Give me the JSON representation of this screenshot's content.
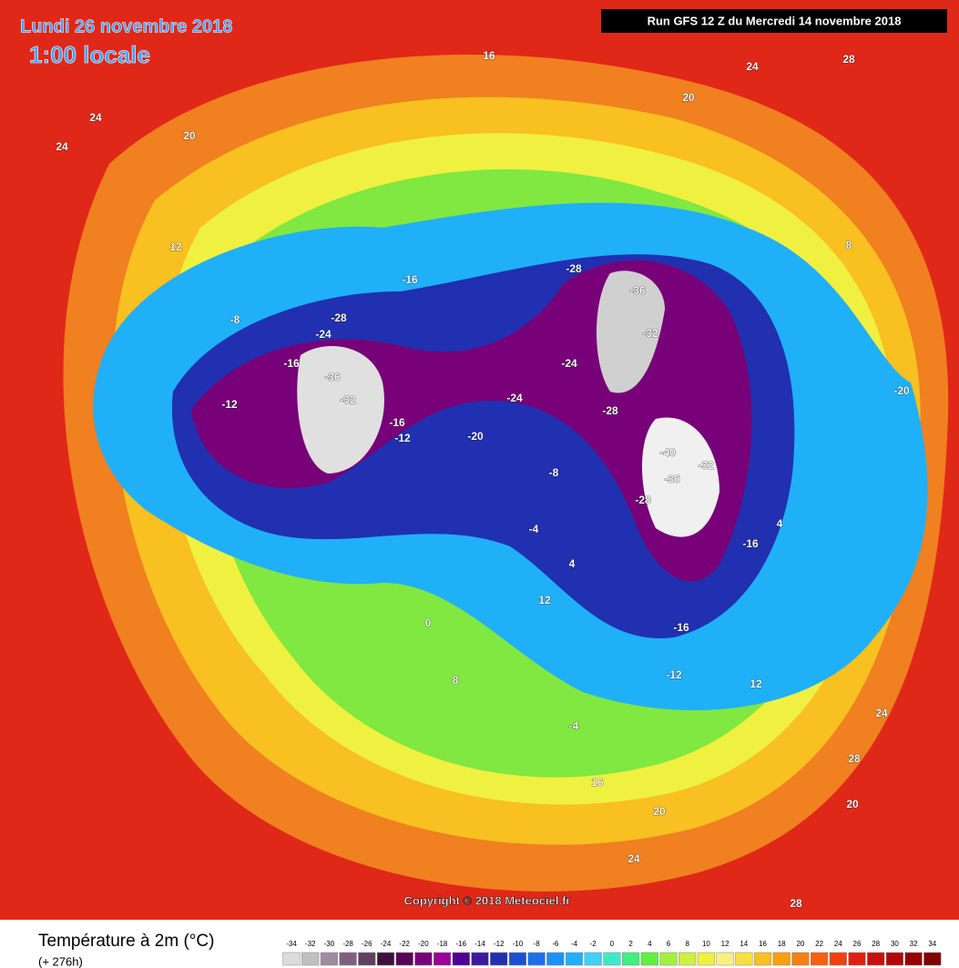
{
  "header": {
    "date": "Lundi 26 novembre 2018",
    "time": "1:00 locale",
    "run": "Run GFS 12 Z du Mercredi 14 novembre 2018"
  },
  "copyright": "Copyright © 2018 Meteociel.fr",
  "legend": {
    "title": "Température à 2m (°C)",
    "subtitle": "(+ 276h)",
    "scale": [
      -34,
      -32,
      -30,
      -28,
      -26,
      -24,
      -22,
      -20,
      -18,
      -16,
      -14,
      -12,
      -10,
      -8,
      -6,
      -4,
      -2,
      0,
      2,
      4,
      6,
      8,
      10,
      12,
      14,
      16,
      18,
      20,
      22,
      24,
      26,
      28,
      30,
      32,
      34
    ],
    "colors": [
      "#dcdcdc",
      "#c0c0c0",
      "#a08ca0",
      "#806080",
      "#604060",
      "#40103c",
      "#580058",
      "#780078",
      "#9a009a",
      "#500090",
      "#3c1c9c",
      "#2030b0",
      "#1c50d0",
      "#1c70e8",
      "#1c90f4",
      "#20b0f8",
      "#40d0f8",
      "#40e8c8",
      "#40f080",
      "#60f040",
      "#a0f040",
      "#d0f040",
      "#f0f040",
      "#f8f080",
      "#f8e040",
      "#f8c020",
      "#f8a010",
      "#f88010",
      "#f86010",
      "#f04010",
      "#e02010",
      "#c81010",
      "#b00808",
      "#980000",
      "#800000"
    ]
  },
  "map_labels": [
    "16",
    "24",
    "28",
    "24",
    "20",
    "24",
    "20",
    "12",
    "-8",
    "-16",
    "-28",
    "-24",
    "-36",
    "-32",
    "-12",
    "-16",
    "-24",
    "-20",
    "-16",
    "-12",
    "-28",
    "-36",
    "-32",
    "-24",
    "-28",
    "-40",
    "-36",
    "-32",
    "-28",
    "-16",
    "-20",
    "-16",
    "-12",
    "-8",
    "-4",
    "0",
    "4",
    "8",
    "12",
    "16",
    "20",
    "24",
    "28",
    "20",
    "24",
    "28",
    "8",
    "12",
    "4",
    "-4"
  ]
}
